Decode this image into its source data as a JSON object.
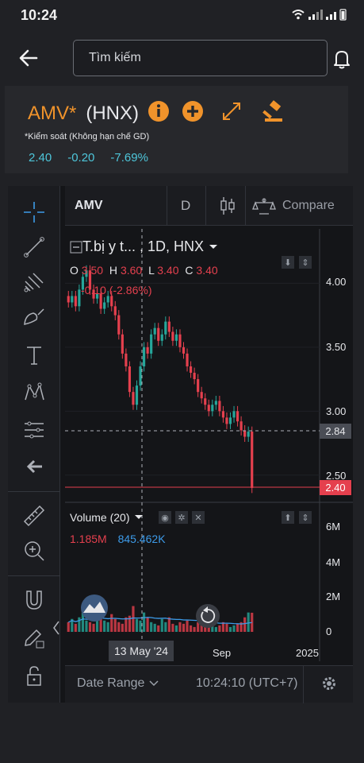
{
  "status_bar": {
    "time": "10:24"
  },
  "search": {
    "placeholder": "Tìm kiếm"
  },
  "stock": {
    "ticker": "AMV*",
    "exchange": "(HNX)",
    "control_note": "*Kiểm soát (Không hạn chế GD)",
    "price": "2.40",
    "change": "-0.20",
    "change_pct": "-7.69%"
  },
  "chart_header": {
    "symbol": "AMV",
    "interval": "D",
    "compare_label": "Compare"
  },
  "legend": {
    "title": "T.bị y t... , 1D, HNX",
    "o_label": "O",
    "o_value": "3.50",
    "h_label": "H",
    "h_value": "3.60",
    "l_label": "L",
    "l_value": "3.40",
    "c_label": "C",
    "c_value": "3.40",
    "change_text": "-0.10 (-2.86%)"
  },
  "volume": {
    "title": "Volume (20)",
    "value1": "1.185M",
    "value2": "845.462K"
  },
  "colors": {
    "accent": "#f0932b",
    "up": "#26a69a",
    "down": "#e5404e",
    "cyan": "#4ec6da"
  },
  "chart_data": {
    "type": "candlestick",
    "title": "T.bị y t... , 1D, HNX",
    "price_axis": [
      "4.00",
      "3.50",
      "3.00",
      "2.50"
    ],
    "volume_axis": [
      "6M",
      "4M",
      "2M",
      "0"
    ],
    "time_labels": [
      "13 May '24",
      "Sep",
      "2025"
    ],
    "crosshair_price": "2.84",
    "last_price": "2.40",
    "ylim": [
      2.3,
      4.35
    ],
    "closes": [
      3.85,
      3.9,
      3.82,
      3.95,
      4.05,
      4.1,
      3.95,
      3.88,
      3.92,
      3.8,
      3.85,
      3.9,
      3.82,
      3.75,
      3.6,
      3.45,
      3.35,
      3.15,
      3.05,
      3.2,
      3.35,
      3.5,
      3.45,
      3.6,
      3.65,
      3.55,
      3.6,
      3.7,
      3.62,
      3.55,
      3.6,
      3.5,
      3.45,
      3.35,
      3.3,
      3.25,
      3.15,
      3.1,
      3.05,
      3.0,
      3.05,
      3.08,
      3.0,
      2.95,
      2.9,
      2.95,
      3.0,
      2.92,
      2.85,
      2.8,
      2.84,
      2.4
    ],
    "volumes": [
      0.6,
      0.8,
      0.5,
      0.9,
      1.2,
      0.7,
      0.6,
      0.5,
      1.8,
      0.9,
      0.7,
      0.6,
      1.1,
      0.8,
      0.6,
      0.5,
      0.9,
      1.0,
      1.6,
      0.8,
      0.7,
      1.2,
      0.9,
      0.6,
      0.5,
      0.4,
      0.8,
      0.6,
      0.9,
      0.5,
      0.4,
      0.6,
      0.5,
      0.7,
      0.4,
      0.3,
      0.6,
      0.5,
      0.4,
      0.8,
      0.5,
      0.3,
      0.4,
      0.6,
      0.5,
      0.3,
      0.4,
      0.5,
      0.6,
      0.9,
      1.2,
      1.185
    ]
  }
}
